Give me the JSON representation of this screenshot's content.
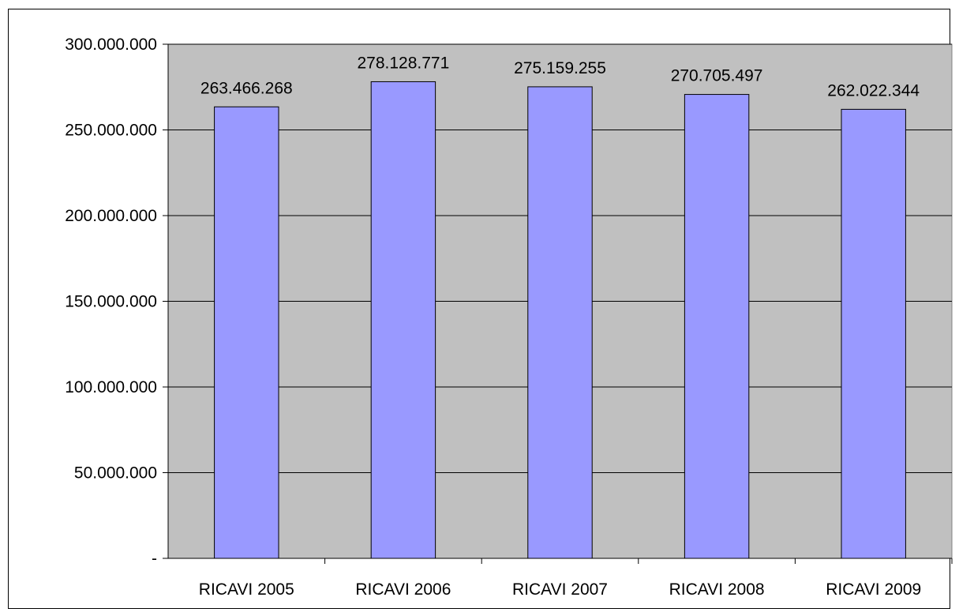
{
  "chart_data": {
    "type": "bar",
    "title": "",
    "xlabel": "",
    "ylabel": "",
    "categories": [
      "RICAVI 2005",
      "RICAVI 2006",
      "RICAVI 2007",
      "RICAVI 2008",
      "RICAVI 2009"
    ],
    "values": [
      263466268,
      278128771,
      275159255,
      270705497,
      262022344
    ],
    "data_labels": [
      "263.466.268",
      "278.128.771",
      "275.159.255",
      "270.705.497",
      "262.022.344"
    ],
    "ylim": [
      0,
      300000000
    ],
    "yticks": [
      0,
      50000000,
      100000000,
      150000000,
      200000000,
      250000000,
      300000000
    ],
    "ytick_labels": [
      "-",
      "50.000.000",
      "100.000.000",
      "150.000.000",
      "200.000.000",
      "250.000.000",
      "300.000.000"
    ],
    "grid": true,
    "legend": "none",
    "colors": {
      "bar_fill": "#9999ff",
      "bar_stroke": "#000000",
      "plot_background": "#c0c0c0",
      "gridline": "#000000"
    }
  }
}
